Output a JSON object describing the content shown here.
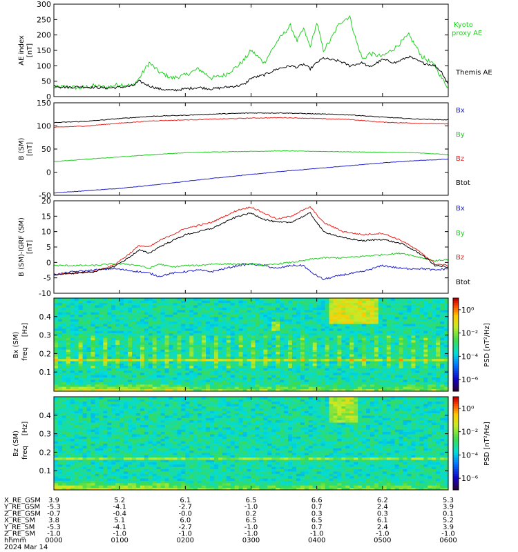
{
  "title_fragment": "(.  ,  ,  )",
  "colors": {
    "black": "#000000",
    "red": "#e8201c",
    "green": "#1ccc1c",
    "blue": "#1c1cc8",
    "kyoto": "#22d022"
  },
  "chart_data": [
    {
      "type": "line",
      "ylabel": "AE index",
      "yunit": "[nT]",
      "ylim": [
        0,
        300
      ],
      "yticks": [
        "0",
        "50",
        "100",
        "150",
        "200",
        "250",
        "300"
      ],
      "ytick_values": [
        0,
        50,
        100,
        150,
        200,
        250,
        300
      ],
      "x_hours": [
        0,
        0.2,
        0.4,
        0.6,
        0.8,
        1.0,
        1.2,
        1.3,
        1.45,
        1.6,
        1.8,
        2.0,
        2.2,
        2.4,
        2.6,
        2.8,
        2.9,
        3.0,
        3.2,
        3.4,
        3.6,
        3.7,
        3.8,
        3.9,
        4.0,
        4.1,
        4.2,
        4.35,
        4.5,
        4.6,
        4.7,
        4.8,
        5.0,
        5.2,
        5.4,
        5.6,
        5.8,
        5.9,
        6.0
      ],
      "series": [
        {
          "name": "Kyoto proxy AE",
          "color": "#22d022",
          "values": [
            30,
            32,
            28,
            35,
            30,
            40,
            35,
            60,
            110,
            80,
            60,
            70,
            90,
            60,
            70,
            100,
            120,
            150,
            110,
            180,
            230,
            180,
            220,
            160,
            240,
            150,
            180,
            240,
            260,
            180,
            120,
            140,
            130,
            160,
            200,
            130,
            100,
            60,
            30
          ]
        },
        {
          "name": "Themis AE",
          "color": "#000000",
          "values": [
            35,
            30,
            32,
            30,
            28,
            30,
            35,
            50,
            35,
            25,
            20,
            25,
            30,
            25,
            30,
            35,
            40,
            60,
            70,
            90,
            100,
            95,
            105,
            90,
            110,
            125,
            120,
            115,
            100,
            105,
            110,
            95,
            120,
            110,
            130,
            110,
            100,
            80,
            40
          ]
        }
      ]
    },
    {
      "type": "line",
      "ylabel": "B (SM)",
      "yunit": "[nT]",
      "ylim": [
        -50,
        150
      ],
      "yticks": [
        "-50",
        "0",
        "50",
        "100",
        "150"
      ],
      "ytick_values": [
        -50,
        0,
        50,
        100,
        150
      ],
      "x_hours": [
        0,
        0.5,
        1.0,
        1.5,
        2.0,
        2.5,
        3.0,
        3.5,
        4.0,
        4.5,
        5.0,
        5.5,
        6.0
      ],
      "series": [
        {
          "name": "Bx",
          "color": "#1c1cc8",
          "values": [
            -45,
            -40,
            -35,
            -28,
            -20,
            -12,
            -5,
            2,
            8,
            14,
            20,
            25,
            28
          ]
        },
        {
          "name": "By",
          "color": "#1ccc1c",
          "values": [
            23,
            28,
            33,
            38,
            42,
            44,
            45,
            46,
            45,
            44,
            43,
            42,
            38
          ]
        },
        {
          "name": "Bz",
          "color": "#e8201c",
          "values": [
            97,
            100,
            106,
            111,
            113,
            115,
            117,
            118,
            116,
            114,
            108,
            106,
            104
          ]
        },
        {
          "name": "Btot",
          "color": "#000000",
          "values": [
            107,
            110,
            116,
            121,
            123,
            126,
            128,
            128,
            126,
            124,
            119,
            115,
            113
          ]
        }
      ]
    },
    {
      "type": "line",
      "ylabel": "B (SM)-IGRF (SM)",
      "yunit": "[nT]",
      "ylim": [
        -10,
        20
      ],
      "yticks": [
        "-10",
        "-5",
        "0",
        "5",
        "10",
        "15",
        "20"
      ],
      "ytick_values": [
        -10,
        -5,
        0,
        5,
        10,
        15,
        20
      ],
      "x_hours": [
        0,
        0.3,
        0.6,
        0.9,
        1.1,
        1.3,
        1.45,
        1.6,
        1.8,
        2.0,
        2.2,
        2.4,
        2.6,
        2.8,
        3.0,
        3.2,
        3.4,
        3.6,
        3.8,
        3.9,
        4.1,
        4.4,
        4.7,
        5.0,
        5.3,
        5.6,
        5.8,
        6.0
      ],
      "series": [
        {
          "name": "Bx",
          "color": "#1c1cc8",
          "values": [
            -4,
            -3,
            -2.5,
            -2,
            -2.5,
            -3,
            -3.5,
            -4.5,
            -3.5,
            -3,
            -2.5,
            -3,
            -2,
            -1,
            -0.5,
            -1,
            -2,
            -1,
            -1,
            -3,
            -5.5,
            -4,
            -3,
            -1,
            -2,
            -2,
            -2.5,
            -2
          ]
        },
        {
          "name": "By",
          "color": "#1ccc1c",
          "values": [
            -1,
            -1,
            -1,
            -0.5,
            -0.5,
            -1,
            -2,
            -0.5,
            -1.5,
            -1,
            -1,
            -0.5,
            -0.5,
            -0.5,
            -0.5,
            -1,
            -0.5,
            0,
            0.5,
            1,
            1.5,
            1.5,
            2,
            2.5,
            3,
            1.5,
            0.5,
            1
          ]
        },
        {
          "name": "Bz",
          "color": "#e8201c",
          "values": [
            -4,
            -3.5,
            -3,
            -1,
            2,
            5.5,
            5,
            7,
            9,
            11,
            12,
            13,
            15,
            17,
            18,
            16,
            14,
            15,
            17,
            18,
            13,
            10,
            9,
            9.5,
            7,
            3,
            -0.5,
            -1
          ]
        },
        {
          "name": "Btot",
          "color": "#000000",
          "values": [
            -4,
            -3.5,
            -3,
            -1.5,
            1,
            4,
            3,
            5,
            7,
            9,
            10,
            11,
            13,
            15,
            16,
            14,
            13,
            13,
            15,
            16,
            10,
            8,
            7,
            7.5,
            6,
            2.5,
            -1,
            -1.5
          ]
        }
      ]
    },
    {
      "type": "heatmap",
      "ylabel": "Bx (SM)",
      "y2label": "freq",
      "yunit": "[Hz]",
      "ylim": [
        0,
        0.5
      ],
      "yticks": [
        "0.1",
        "0.2",
        "0.3",
        "0.4"
      ],
      "ytick_values": [
        0.1,
        0.2,
        0.3,
        0.4
      ],
      "colorbar_label": "PSD [nT²/Hz]",
      "colorbar_ticks": [
        "10⁰",
        "10⁻²",
        "10⁻⁴",
        "10⁻⁶"
      ],
      "colorbar_tick_exponents": [
        0,
        -2,
        -4,
        -6
      ],
      "clim_exponents": [
        -7,
        1
      ]
    },
    {
      "type": "heatmap",
      "ylabel": "Bz (SM)",
      "y2label": "freq",
      "yunit": "[Hz]",
      "ylim": [
        0,
        0.5
      ],
      "yticks": [
        "0.1",
        "0.2",
        "0.3",
        "0.4"
      ],
      "ytick_values": [
        0.1,
        0.2,
        0.3,
        0.4
      ],
      "colorbar_label": "PSD [nT²/Hz]",
      "colorbar_ticks": [
        "10⁰",
        "10⁻²",
        "10⁻⁴",
        "10⁻⁶"
      ],
      "colorbar_tick_exponents": [
        0,
        -2,
        -4,
        -6
      ],
      "clim_exponents": [
        -7,
        1
      ]
    }
  ],
  "legends": {
    "p1": [
      "Kyoto",
      "proxy AE",
      "Themis AE"
    ],
    "p2": [
      "Bx",
      "By",
      "Bz",
      "Btot"
    ],
    "p3": [
      "Bx",
      "By",
      "Bz",
      "Btot"
    ]
  },
  "ephemeris": {
    "rows": [
      {
        "label": "X_RE_GSM",
        "values": [
          "3.9",
          "5.2",
          "6.1",
          "6.5",
          "6.6",
          "6.2",
          "5.3"
        ]
      },
      {
        "label": "Y_RE_GSM",
        "values": [
          "-5.3",
          "-4.1",
          "-2.7",
          "-1.0",
          "0.7",
          "2.4",
          "3.9"
        ]
      },
      {
        "label": "Z_RE_GSM",
        "values": [
          "-0.7",
          "-0.4",
          "-0.0",
          "0.2",
          "0.3",
          "0.3",
          "0.1"
        ]
      },
      {
        "label": "X_RE_SM",
        "values": [
          "3.8",
          "5.1",
          "6.0",
          "6.5",
          "6.5",
          "6.1",
          "5.2"
        ]
      },
      {
        "label": "Y_RE_SM",
        "values": [
          "-5.3",
          "-4.1",
          "-2.7",
          "-1.0",
          "0.7",
          "2.4",
          "3.9"
        ]
      },
      {
        "label": "Z_RE_SM",
        "values": [
          "-1.0",
          "-1.0",
          "-1.0",
          "-1.0",
          "-1.0",
          "-1.0",
          "-1.0"
        ]
      },
      {
        "label": "hhmm",
        "values": [
          "0000",
          "0100",
          "0200",
          "0300",
          "0400",
          "0500",
          "0600"
        ]
      }
    ],
    "date": "2024 Mar 14"
  }
}
